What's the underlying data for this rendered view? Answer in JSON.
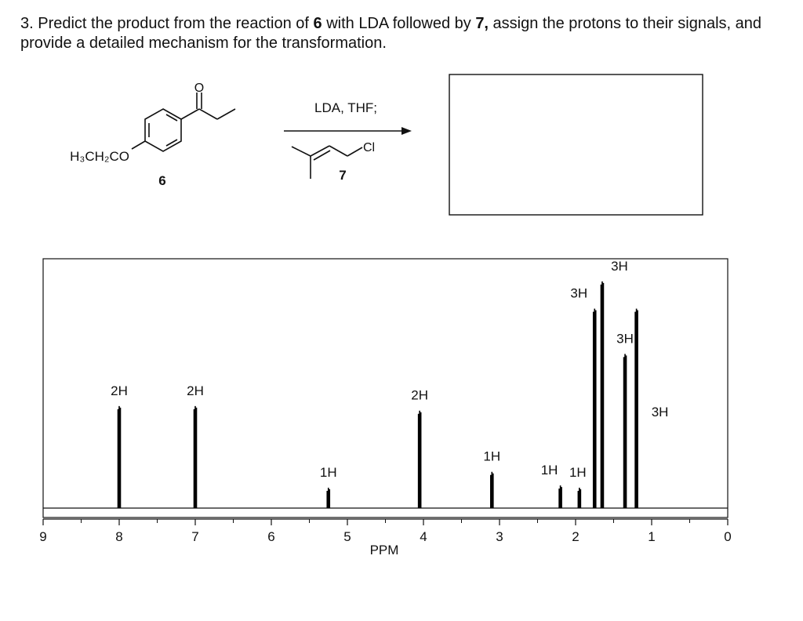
{
  "question": {
    "parts": [
      "3. Predict the product from the reaction of ",
      "6",
      " with LDA followed by ",
      "7,",
      " assign the protons to their signals, and provide a detailed mechanism for the transformation."
    ]
  },
  "reaction": {
    "substituent": "H₃CH₂CO",
    "carbonyl_oxygen": "O",
    "substrate_label": "6",
    "conditions": "LDA, THF;",
    "chlorine": "Cl",
    "reagent_label": "7"
  },
  "chart_data": {
    "type": "nmr",
    "x": [
      8.0,
      7.0,
      5.25,
      4.05,
      3.1,
      2.2,
      1.95,
      1.75,
      1.65,
      1.35,
      1.2
    ],
    "values": [
      45,
      45,
      9,
      43,
      16,
      10,
      9,
      88,
      100,
      68,
      88
    ],
    "value_labels": [
      "2H",
      "2H",
      "1H",
      "2H",
      "1H",
      "1H",
      "1H",
      "3H",
      "3H",
      "3H",
      "3H"
    ],
    "xlim": [
      9,
      0
    ],
    "ylim": [
      0,
      110
    ],
    "xticks": [
      9,
      8,
      7,
      6,
      5,
      4,
      3,
      2,
      1,
      0
    ],
    "xlabel": "PPM",
    "color": "#000000"
  }
}
